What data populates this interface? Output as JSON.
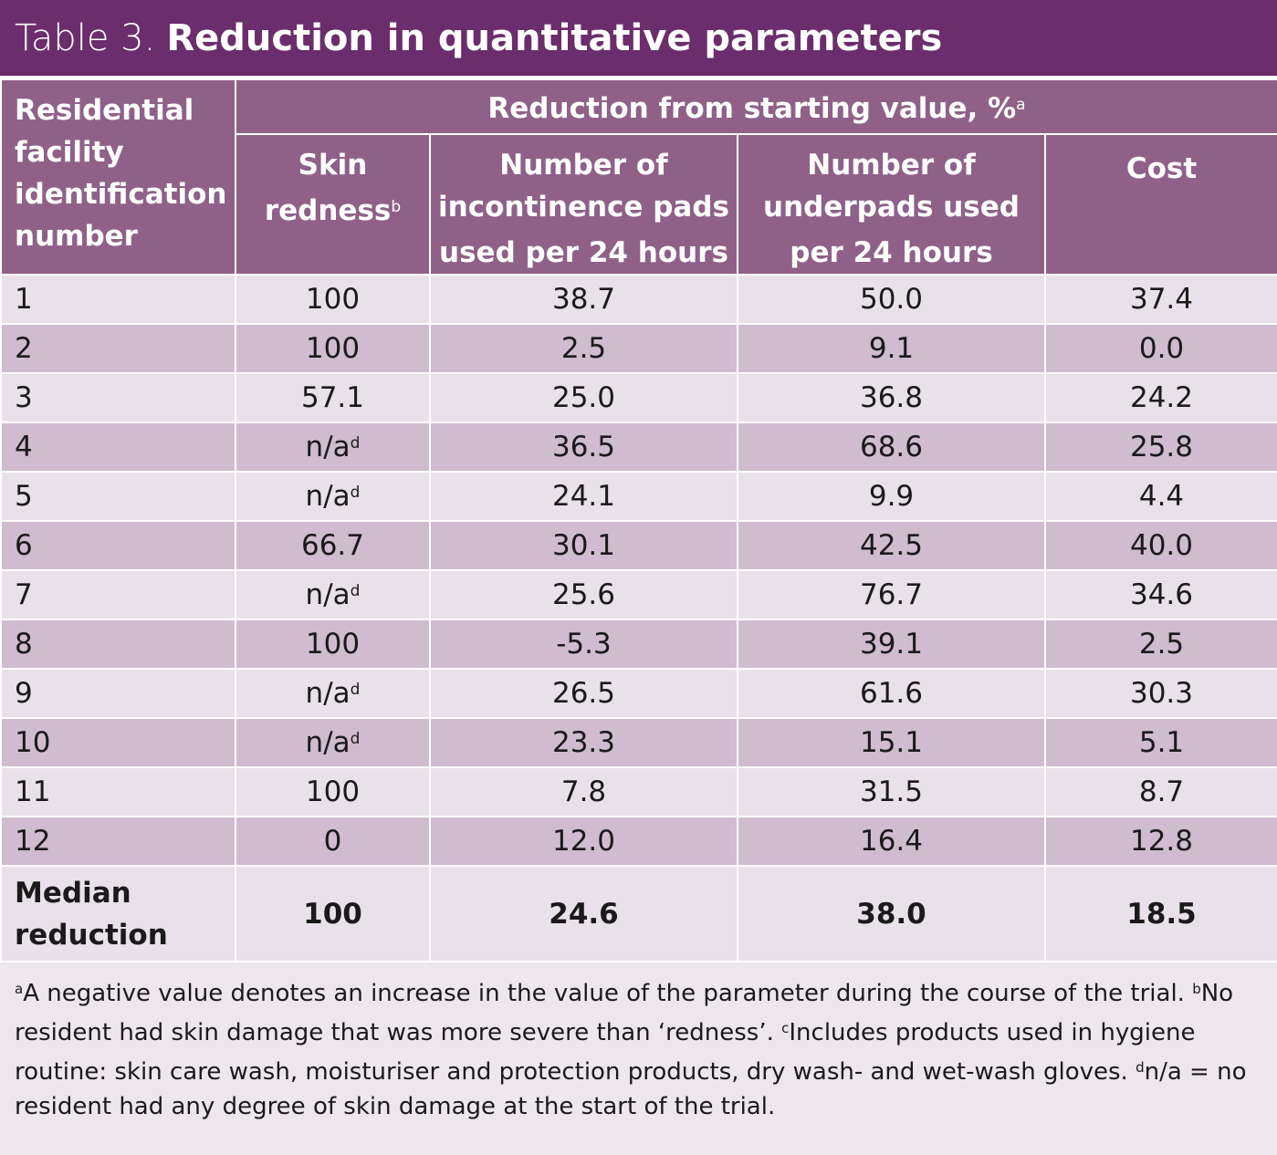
{
  "title": {
    "label": "Table 3.",
    "text": "Reduction in quantitative parameters"
  },
  "header": {
    "row_header": "Residential facility identification number",
    "group": "Reduction from starting value, %",
    "group_sup": "a",
    "columns": [
      {
        "label": "Skin redness",
        "sup": "b"
      },
      {
        "label": "Number of incontinence pads used per 24 hours",
        "sup": ""
      },
      {
        "label": "Number of underpads used per 24 hours",
        "sup": ""
      },
      {
        "label": "Cost",
        "sup": ""
      }
    ]
  },
  "rows": [
    {
      "id": "1",
      "skin": "100",
      "skin_sup": "",
      "pads": "38.7",
      "underpads": "50.0",
      "cost": "37.4"
    },
    {
      "id": "2",
      "skin": "100",
      "skin_sup": "",
      "pads": "2.5",
      "underpads": "9.1",
      "cost": "0.0"
    },
    {
      "id": "3",
      "skin": "57.1",
      "skin_sup": "",
      "pads": "25.0",
      "underpads": "36.8",
      "cost": "24.2"
    },
    {
      "id": "4",
      "skin": "n/a",
      "skin_sup": "d",
      "pads": "36.5",
      "underpads": "68.6",
      "cost": "25.8"
    },
    {
      "id": "5",
      "skin": "n/a",
      "skin_sup": "d",
      "pads": "24.1",
      "underpads": "9.9",
      "cost": "4.4"
    },
    {
      "id": "6",
      "skin": "66.7",
      "skin_sup": "",
      "pads": "30.1",
      "underpads": "42.5",
      "cost": "40.0"
    },
    {
      "id": "7",
      "skin": "n/a",
      "skin_sup": "d",
      "pads": "25.6",
      "underpads": "76.7",
      "cost": "34.6"
    },
    {
      "id": "8",
      "skin": "100",
      "skin_sup": "",
      "pads": "-5.3",
      "underpads": "39.1",
      "cost": "2.5"
    },
    {
      "id": "9",
      "skin": "n/a",
      "skin_sup": "d",
      "pads": "26.5",
      "underpads": "61.6",
      "cost": "30.3"
    },
    {
      "id": "10",
      "skin": "n/a",
      "skin_sup": "d",
      "pads": "23.3",
      "underpads": "15.1",
      "cost": "5.1"
    },
    {
      "id": "11",
      "skin": "100",
      "skin_sup": "",
      "pads": "7.8",
      "underpads": "31.5",
      "cost": "8.7"
    },
    {
      "id": "12",
      "skin": "0",
      "skin_sup": "",
      "pads": "12.0",
      "underpads": "16.4",
      "cost": "12.8"
    }
  ],
  "median": {
    "label": "Median reduction",
    "skin": "100",
    "pads": "24.6",
    "underpads": "38.0",
    "cost": "18.5"
  },
  "footnotes": [
    {
      "sup": "a",
      "text": "A negative value denotes an increase in the value of the parameter during the course of the trial. "
    },
    {
      "sup": "b",
      "text": "No resident had skin damage that was more severe than ‘redness’. "
    },
    {
      "sup": "c",
      "text": "Includes products used in hygiene routine: skin care wash, moisturiser and protection products, dry wash- and wet-wash gloves. "
    },
    {
      "sup": "d",
      "text": "n/a = no resident had any degree of skin damage at the start of the trial."
    }
  ],
  "colors": {
    "title_bg": "#6b2d6b",
    "header_bg": "#8f6189",
    "row_light": "#e9e1e9",
    "row_dark": "#cfbccf"
  }
}
